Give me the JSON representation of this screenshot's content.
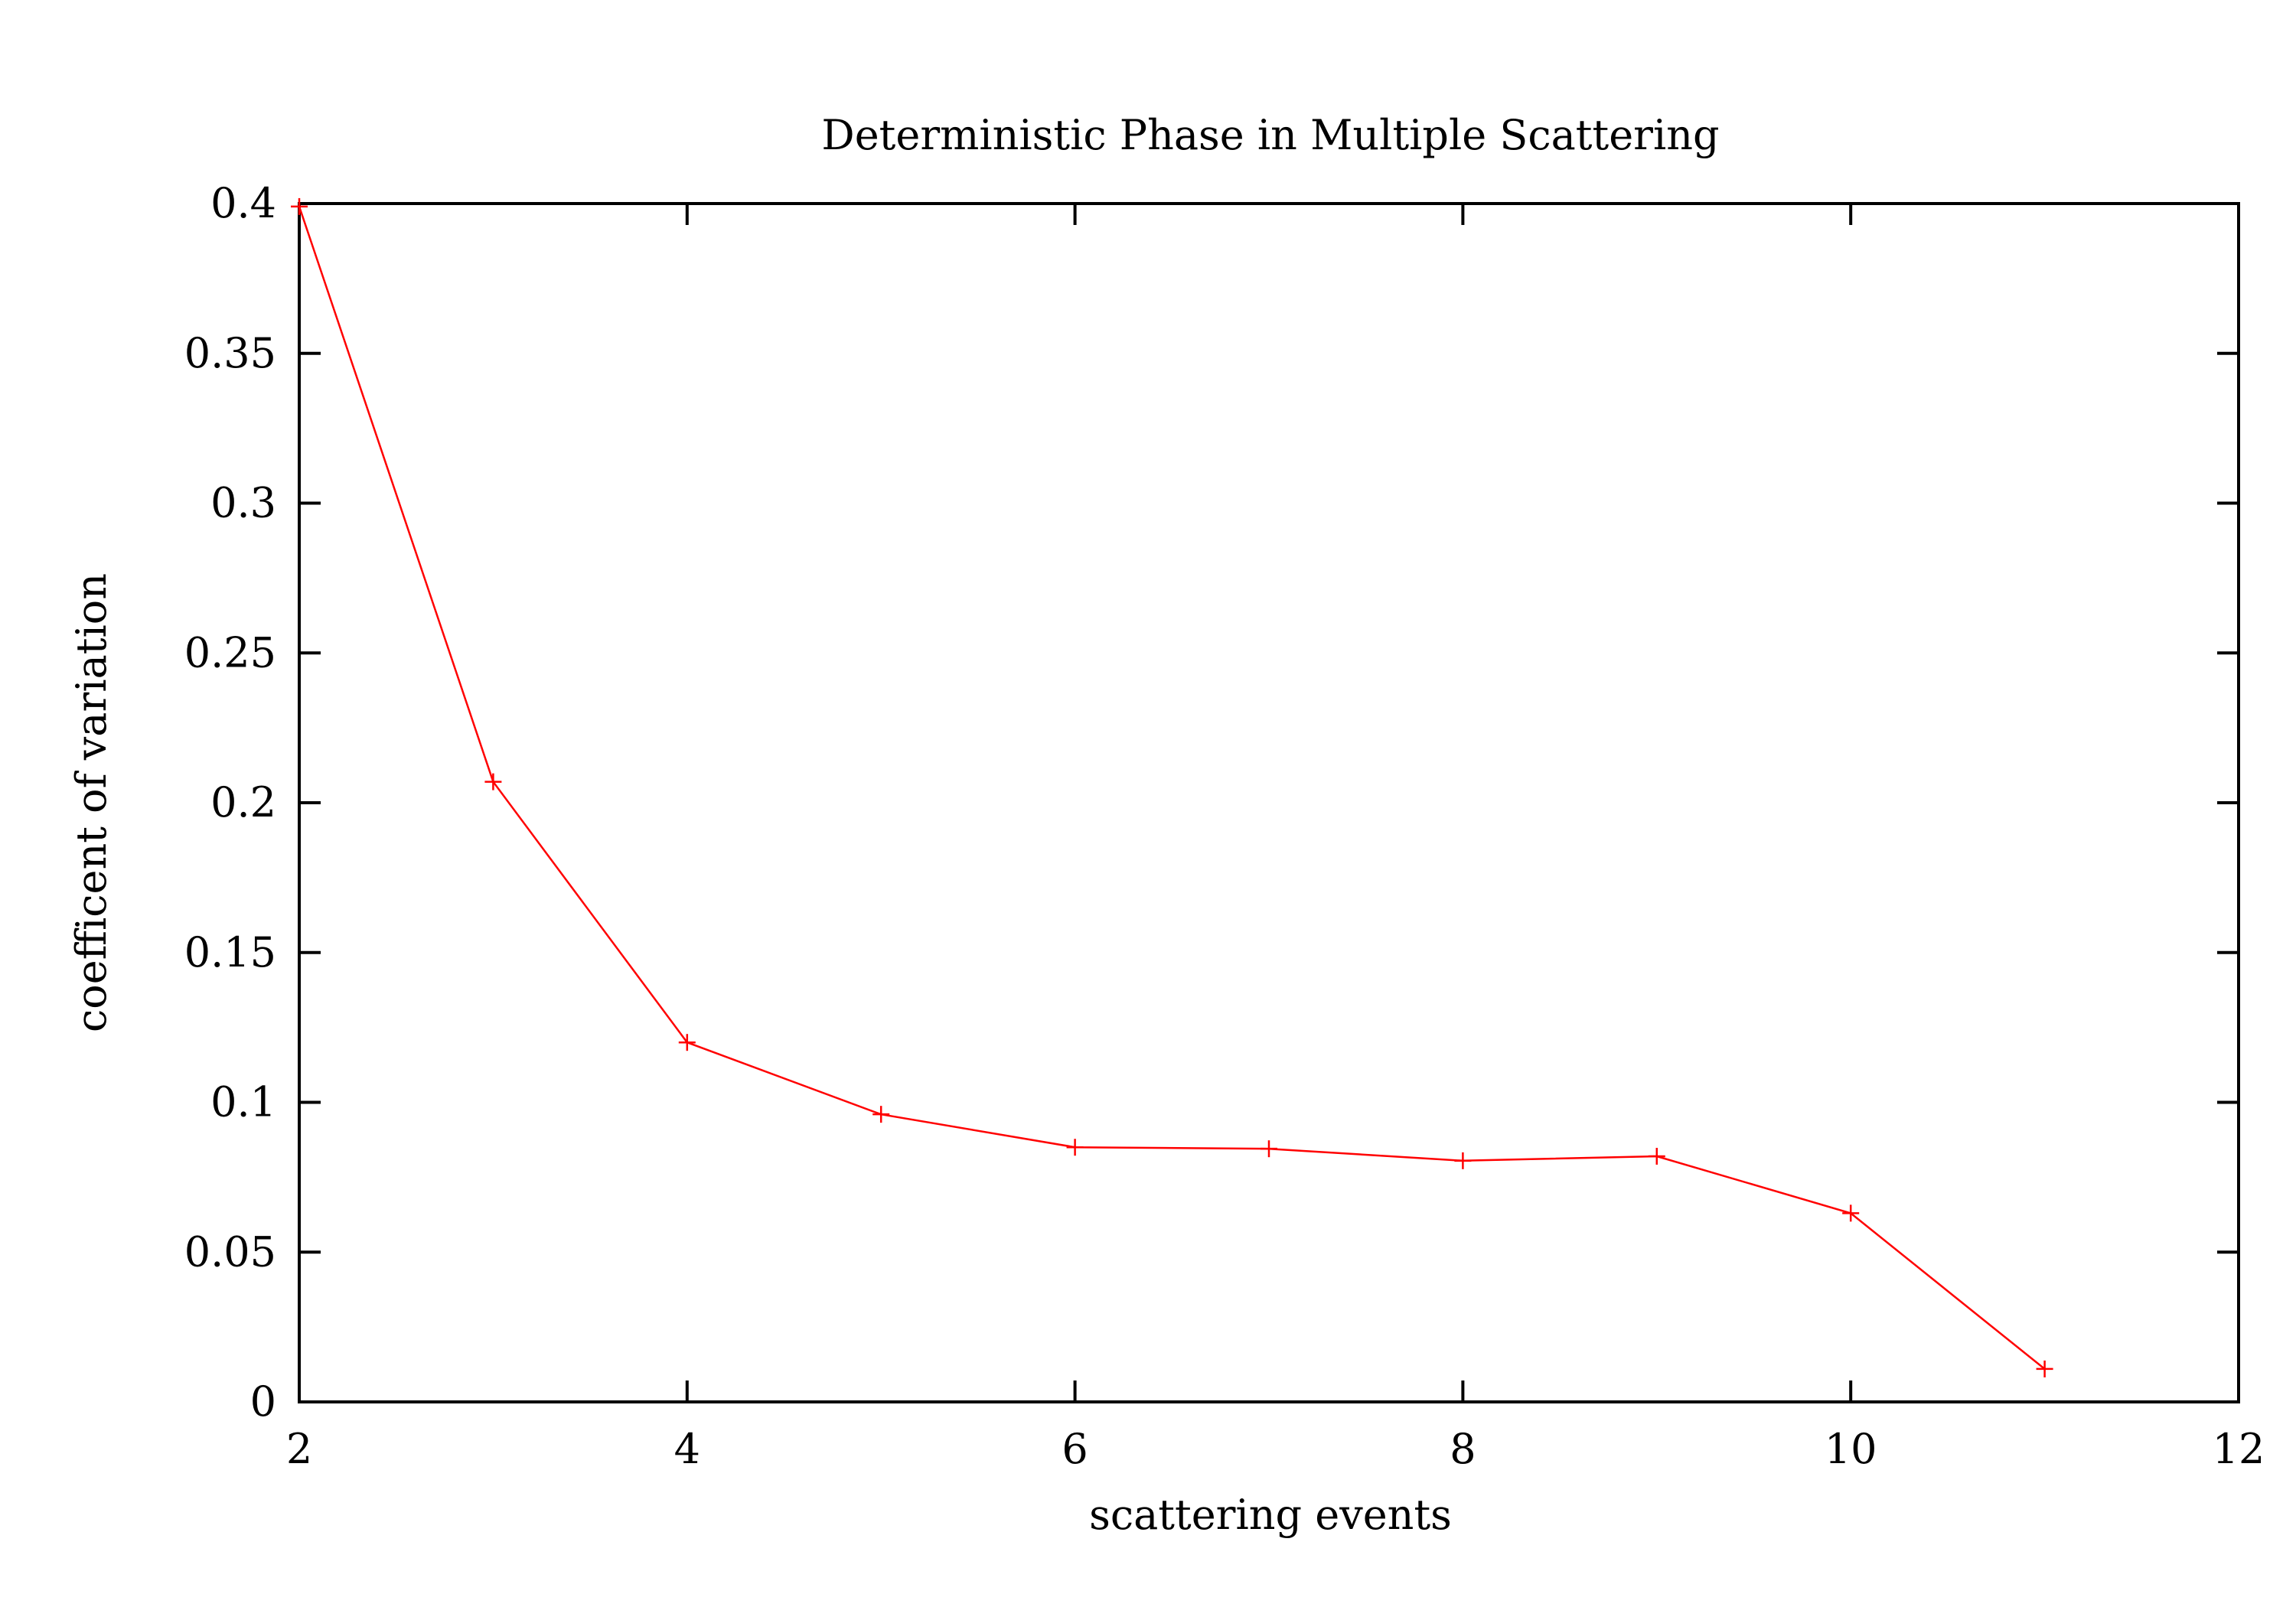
{
  "chart_data": {
    "type": "line",
    "title": "Deterministic Phase in Multiple Scattering",
    "xlabel": "scattering events",
    "ylabel": "coefficent of variation",
    "xlim": [
      2,
      12
    ],
    "ylim": [
      0,
      0.4
    ],
    "x_ticks": [
      "2",
      "4",
      "6",
      "8",
      "10",
      "12"
    ],
    "y_ticks": [
      "0",
      "0.05",
      "0.1",
      "0.15",
      "0.2",
      "0.25",
      "0.3",
      "0.35",
      "0.4"
    ],
    "grid": false,
    "legend": "none",
    "series": [
      {
        "color": "#ff0000",
        "marker": "plus",
        "x": [
          2,
          3,
          4,
          5,
          6,
          7,
          8,
          9,
          10,
          11
        ],
        "y": [
          0.399,
          0.207,
          0.12,
          0.096,
          0.085,
          0.0845,
          0.0805,
          0.082,
          0.063,
          0.011
        ]
      }
    ]
  }
}
